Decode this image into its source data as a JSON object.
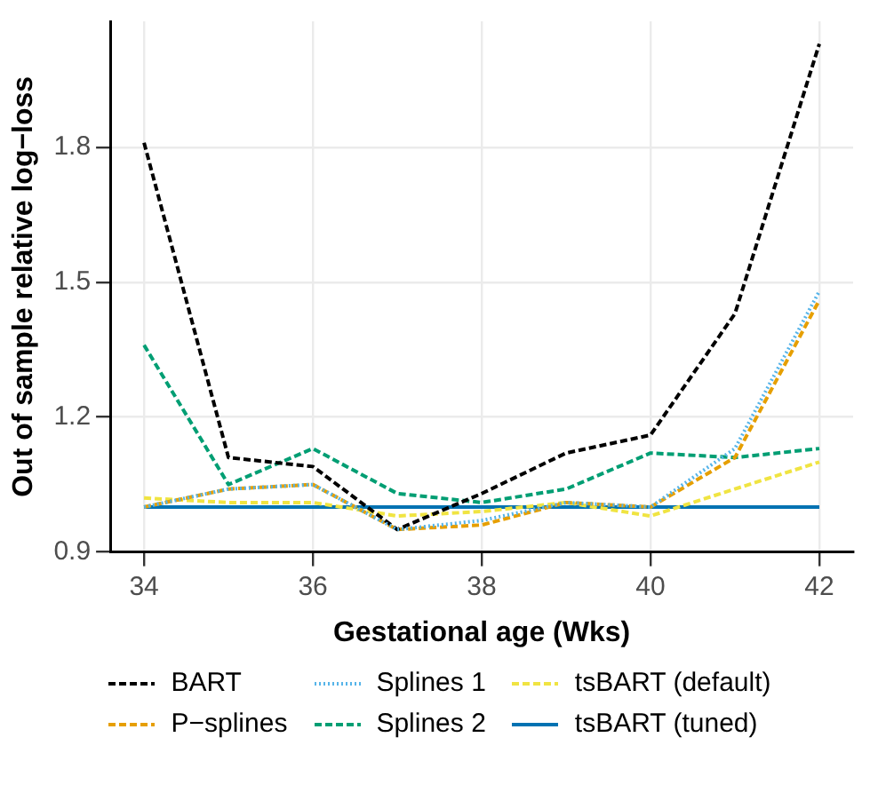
{
  "chart_data": {
    "type": "line",
    "xlabel": "Gestational age (Wks)",
    "ylabel": "Out of sample relative log−loss",
    "x": [
      34,
      35,
      36,
      37,
      38,
      39,
      40,
      41,
      42
    ],
    "series": [
      {
        "name": "BART",
        "color": "#000000",
        "line_style": "dashed",
        "values": [
          1.81,
          1.11,
          1.09,
          0.95,
          1.03,
          1.12,
          1.16,
          1.43,
          2.03
        ]
      },
      {
        "name": "P−splines",
        "color": "#e69f00",
        "line_style": "dashed",
        "values": [
          1.0,
          1.04,
          1.05,
          0.95,
          0.96,
          1.01,
          1.0,
          1.11,
          1.46
        ]
      },
      {
        "name": "Splines 1",
        "color": "#56b4e9",
        "line_style": "dotted",
        "values": [
          1.0,
          1.04,
          1.05,
          0.95,
          0.97,
          1.01,
          1.0,
          1.13,
          1.48
        ]
      },
      {
        "name": "Splines 2",
        "color": "#009e73",
        "line_style": "dashed",
        "values": [
          1.36,
          1.05,
          1.13,
          1.03,
          1.01,
          1.04,
          1.12,
          1.11,
          1.13
        ]
      },
      {
        "name": "tsBART (default)",
        "color": "#f0e442",
        "line_style": "dashed",
        "values": [
          1.02,
          1.01,
          1.01,
          0.98,
          0.99,
          1.01,
          0.98,
          1.04,
          1.1
        ]
      },
      {
        "name": "tsBART (tuned)",
        "color": "#0072b2",
        "line_style": "solid",
        "values": [
          1.0,
          1.0,
          1.0,
          1.0,
          1.0,
          1.0,
          1.0,
          1.0,
          1.0
        ]
      }
    ],
    "xlim": [
      33.6,
      42.4
    ],
    "xticks": [
      34,
      36,
      38,
      40,
      42
    ],
    "ylim": [
      0.9,
      2.08
    ],
    "yticks": [
      0.9,
      1.2,
      1.5,
      1.8
    ],
    "grid": true,
    "legend": "bottom",
    "marker": "none"
  }
}
